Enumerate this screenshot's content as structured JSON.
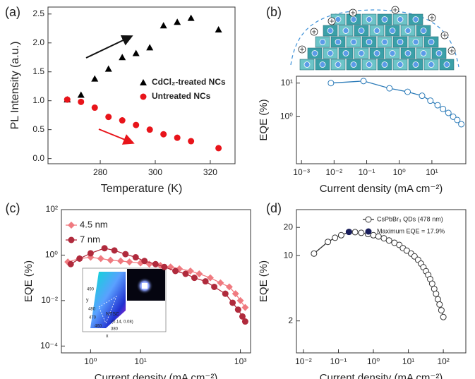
{
  "chart_data": [
    {
      "type": "scatter",
      "panel_label": "(a)",
      "x_label": "Temperature (K)",
      "y_label": "PL Intensity (a.u.)",
      "xlim": [
        261,
        329
      ],
      "ylim": [
        -0.09,
        2.62
      ],
      "xticks": [
        280,
        300,
        320
      ],
      "yticks": [
        {
          "value": 0,
          "label": "0.0"
        },
        0.5,
        {
          "value": 1,
          "label": "1.0"
        },
        1.5,
        {
          "value": 2,
          "label": "2.0"
        },
        2.5
      ],
      "legend": "right",
      "series": [
        {
          "name": "CdCl₂-treated NCs",
          "color": "#000000",
          "marker": "triangle",
          "line": false,
          "x": [
            268,
            273,
            278,
            283,
            288,
            293,
            298,
            303,
            308,
            313,
            323
          ],
          "values": [
            1.02,
            1.1,
            1.38,
            1.55,
            1.75,
            1.82,
            1.92,
            2.3,
            2.36,
            2.43,
            2.23
          ]
        },
        {
          "name": "Untreated NCs",
          "color": "#e8141a",
          "marker": "circle",
          "line": false,
          "x": [
            268,
            273,
            278,
            283,
            288,
            293,
            298,
            303,
            308,
            313,
            323
          ],
          "values": [
            1.02,
            0.98,
            0.88,
            0.72,
            0.66,
            0.58,
            0.5,
            0.42,
            0.36,
            0.3,
            0.18
          ]
        }
      ]
    },
    {
      "type": "line",
      "panel_label": "(b)",
      "x_label": "Current density (mA cm⁻²)",
      "y_label": "EQE (%)",
      "xscale": "log",
      "yscale": "log",
      "xlim": [
        0.0007,
        110
      ],
      "ylim": [
        0.04,
        16
      ],
      "xticks": [
        {
          "value": 0.001,
          "label": "10⁻³"
        },
        {
          "value": 0.01,
          "label": "10⁻²"
        },
        {
          "value": 0.1,
          "label": "10⁻¹"
        },
        {
          "value": 1,
          "label": "10⁰"
        },
        {
          "value": 10,
          "label": "10¹"
        }
      ],
      "yticks": [
        {
          "value": 1,
          "label": "10⁰"
        },
        {
          "value": 10,
          "label": "10¹"
        }
      ],
      "series": [
        {
          "color": "#2a7ab8",
          "marker": "open-circle",
          "line": true,
          "x": [
            0.008,
            0.08,
            0.5,
            1.8,
            5,
            9,
            15,
            22,
            32,
            45,
            60,
            80
          ],
          "values": [
            10,
            11.5,
            7,
            5.5,
            4.2,
            3,
            2.2,
            1.7,
            1.3,
            1.0,
            0.8,
            0.6
          ]
        }
      ]
    },
    {
      "type": "line",
      "panel_label": "(c)",
      "x_label": "Current density (mA cm⁻²)",
      "y_label": "EQE (%)",
      "xscale": "log",
      "yscale": "log",
      "xlim": [
        0.26,
        1600
      ],
      "ylim": [
        5e-05,
        100
      ],
      "xticks": [
        {
          "value": 1,
          "label": "10⁰"
        },
        {
          "value": 10,
          "label": "10¹"
        },
        {
          "value": 1000,
          "label": "10³"
        }
      ],
      "yticks": [
        {
          "value": 0.0001,
          "label": "10⁻⁴"
        },
        {
          "value": 0.01,
          "label": "10⁻²"
        },
        {
          "value": 1,
          "label": "10⁰"
        },
        {
          "value": 100,
          "label": "10²"
        }
      ],
      "legend": "upper left",
      "inset_labels": [
        "NTSC",
        "(0.14, 0.08)",
        "y",
        "x",
        "490",
        "480",
        "470",
        "460",
        "380"
      ],
      "series": [
        {
          "name": "4.5 nm",
          "color": "#f07a80",
          "marker": "diamond",
          "line": true,
          "x": [
            0.35,
            0.6,
            1,
            1.6,
            2.5,
            4,
            6,
            10,
            15,
            25,
            40,
            60,
            100,
            150,
            250,
            400,
            600,
            800,
            1000,
            1250
          ],
          "values": [
            0.5,
            0.7,
            0.8,
            0.7,
            0.6,
            0.55,
            0.5,
            0.45,
            0.4,
            0.35,
            0.3,
            0.25,
            0.2,
            0.15,
            0.1,
            0.06,
            0.04,
            0.02,
            0.01,
            0.005
          ]
        },
        {
          "name": "7 nm",
          "color": "#b02a3c",
          "marker": "circle",
          "line": true,
          "x": [
            0.4,
            0.6,
            1,
            1.9,
            3,
            5,
            8,
            12,
            20,
            30,
            50,
            80,
            120,
            200,
            300,
            500,
            700,
            900,
            1100,
            1250
          ],
          "values": [
            0.4,
            0.7,
            1.2,
            2,
            1.6,
            1.1,
            0.8,
            0.55,
            0.4,
            0.3,
            0.2,
            0.15,
            0.1,
            0.07,
            0.04,
            0.02,
            0.008,
            0.004,
            0.002,
            0.0012
          ]
        }
      ]
    },
    {
      "type": "line",
      "panel_label": "(d)",
      "x_label": "Current density (mA cm⁻²)",
      "y_label": "EQE (%)",
      "xscale": "log",
      "yscale": "log",
      "xlim": [
        0.0063,
        440
      ],
      "ylim": [
        0.91,
        31
      ],
      "xticks": [
        {
          "value": 0.01,
          "label": "10⁻²"
        },
        {
          "value": 0.1,
          "label": "10⁻¹"
        },
        {
          "value": 1,
          "label": "10⁰"
        },
        {
          "value": 10,
          "label": "10¹"
        },
        {
          "value": 100,
          "label": "10²"
        }
      ],
      "yticks": [
        2,
        10,
        20
      ],
      "legend": "upper right",
      "series": [
        {
          "name": "CsPbBr₃ QDs (478 nm)",
          "color": "#333333",
          "marker": "open-circle",
          "line": true,
          "x": [
            0.02,
            0.05,
            0.08,
            0.12,
            0.2,
            0.3,
            0.45,
            0.7,
            1,
            1.4,
            2,
            2.8,
            4,
            5.5,
            7,
            9,
            12,
            15,
            19,
            23,
            27,
            32,
            37,
            42,
            48,
            55,
            62,
            70,
            78,
            88,
            100
          ],
          "values": [
            10.5,
            14,
            15.5,
            16.5,
            17.9,
            17.8,
            17.5,
            17,
            16.5,
            16,
            15.3,
            14.5,
            13.7,
            13,
            12,
            11.3,
            10.5,
            9.8,
            9,
            8.2,
            7.5,
            6.8,
            6.2,
            5.6,
            5,
            4.4,
            3.9,
            3.4,
            3,
            2.6,
            2.2
          ]
        },
        {
          "name": "Maximum EQE = 17.9%",
          "color": "#1a1f5c",
          "marker": "circle",
          "line": false,
          "x": [
            0.2
          ],
          "values": [
            17.9
          ]
        }
      ]
    }
  ]
}
